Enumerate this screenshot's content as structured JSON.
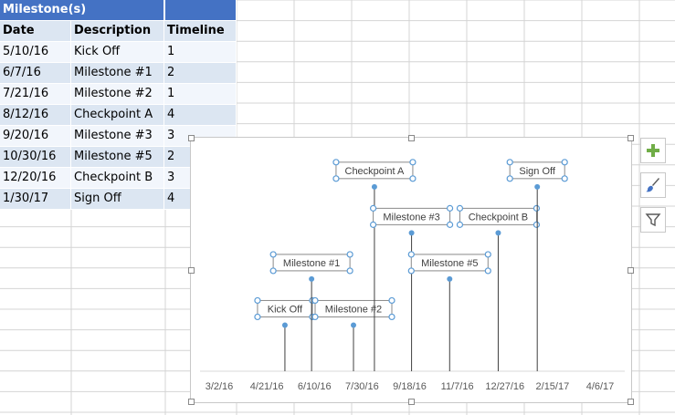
{
  "sheet": {
    "title": "Milestone(s)",
    "headers": [
      "Date",
      "Description",
      "Timeline"
    ],
    "rows": [
      [
        "5/10/16",
        "Kick Off",
        "1"
      ],
      [
        "6/7/16",
        "Milestone #1",
        "2"
      ],
      [
        "7/21/16",
        "Milestone #2",
        "1"
      ],
      [
        "8/12/16",
        "Checkpoint A",
        "4"
      ],
      [
        "9/20/16",
        "Milestone #3",
        "3"
      ],
      [
        "10/30/16",
        "Milestone #5",
        "2"
      ],
      [
        "12/20/16",
        "Checkpoint B",
        "3"
      ],
      [
        "1/30/17",
        "Sign Off",
        "4"
      ]
    ]
  },
  "chart_data": {
    "type": "scatter",
    "series": [
      {
        "x": [
          "2016-05-10",
          "2016-06-07",
          "2016-07-21",
          "2016-08-12",
          "2016-09-20",
          "2016-10-30",
          "2016-12-20",
          "2017-01-30"
        ],
        "y": [
          1,
          2,
          1,
          4,
          3,
          2,
          3,
          4
        ],
        "labels": [
          "Kick Off",
          "Milestone #1",
          "Milestone #2",
          "Checkpoint A",
          "Milestone #3",
          "Milestone #5",
          "Checkpoint B",
          "Sign Off"
        ]
      }
    ],
    "x_ticks": [
      "3/2/16",
      "4/21/16",
      "6/10/16",
      "7/30/16",
      "9/18/16",
      "11/7/16",
      "12/27/16",
      "2/15/17",
      "4/6/17"
    ],
    "xlim": [
      "2016-03-02",
      "2017-04-06"
    ],
    "ylim": [
      0,
      4.6
    ],
    "grid": false,
    "legend": "none",
    "marker_color": "#5b9bd5",
    "line_color": "#404040"
  },
  "side_buttons": [
    {
      "icon": "plus-icon",
      "color": "#70ad47"
    },
    {
      "icon": "brush-icon",
      "color": "#4472c4"
    },
    {
      "icon": "filter-icon",
      "color": "#595959"
    }
  ],
  "colors": {
    "header": "#4472c4",
    "band": "#dce6f2",
    "gridline": "#d4d4d4"
  }
}
